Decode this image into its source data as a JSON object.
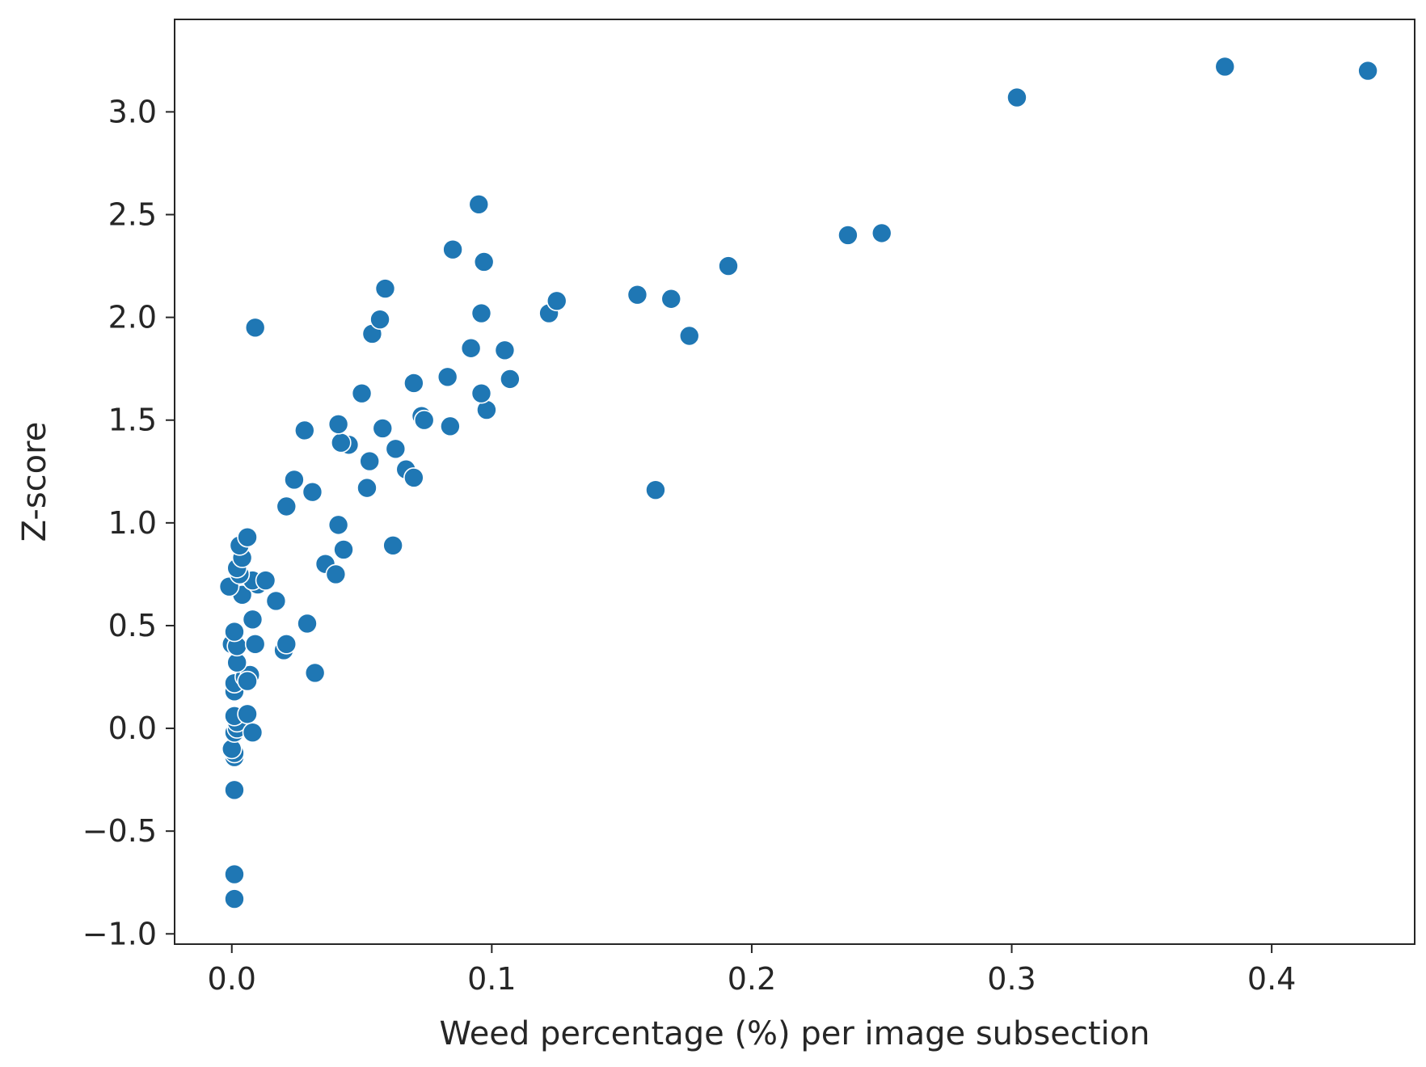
{
  "chart_data": {
    "type": "scatter",
    "title": "",
    "xlabel": "Weed percentage (%) per image subsection",
    "ylabel": "Z-score",
    "xlim": [
      -0.022,
      0.455
    ],
    "ylim": [
      -1.05,
      3.45
    ],
    "xticks": [
      0.0,
      0.1,
      0.2,
      0.3,
      0.4
    ],
    "xtick_labels": [
      "0.0",
      "0.1",
      "0.2",
      "0.3",
      "0.4"
    ],
    "yticks": [
      -1.0,
      -0.5,
      0.0,
      0.5,
      1.0,
      1.5,
      2.0,
      2.5,
      3.0
    ],
    "ytick_labels": [
      "−1.0",
      "−0.5",
      "0.0",
      "0.5",
      "1.0",
      "1.5",
      "2.0",
      "2.5",
      "3.0"
    ],
    "grid": false,
    "legend": "none",
    "marker_color": "#1f77b4",
    "marker_edge_color": "#ffffff",
    "points": [
      {
        "x": 0.001,
        "y": -0.83
      },
      {
        "x": 0.001,
        "y": -0.71
      },
      {
        "x": 0.001,
        "y": -0.3
      },
      {
        "x": 0.001,
        "y": -0.14
      },
      {
        "x": 0.001,
        "y": -0.12
      },
      {
        "x": 0.0,
        "y": -0.1
      },
      {
        "x": 0.001,
        "y": -0.02
      },
      {
        "x": 0.002,
        "y": 0.0
      },
      {
        "x": 0.002,
        "y": 0.03
      },
      {
        "x": 0.001,
        "y": 0.06
      },
      {
        "x": 0.006,
        "y": 0.07
      },
      {
        "x": 0.008,
        "y": -0.02
      },
      {
        "x": 0.001,
        "y": 0.18
      },
      {
        "x": 0.001,
        "y": 0.22
      },
      {
        "x": 0.005,
        "y": 0.25
      },
      {
        "x": 0.007,
        "y": 0.26
      },
      {
        "x": 0.006,
        "y": 0.23
      },
      {
        "x": 0.002,
        "y": 0.32
      },
      {
        "x": 0.0,
        "y": 0.41
      },
      {
        "x": 0.002,
        "y": 0.4
      },
      {
        "x": 0.001,
        "y": 0.47
      },
      {
        "x": 0.009,
        "y": 0.41
      },
      {
        "x": 0.008,
        "y": 0.53
      },
      {
        "x": 0.02,
        "y": 0.38
      },
      {
        "x": 0.021,
        "y": 0.41
      },
      {
        "x": 0.029,
        "y": 0.51
      },
      {
        "x": 0.032,
        "y": 0.27
      },
      {
        "x": 0.017,
        "y": 0.62
      },
      {
        "x": 0.004,
        "y": 0.65
      },
      {
        "x": -0.001,
        "y": 0.69
      },
      {
        "x": 0.01,
        "y": 0.7
      },
      {
        "x": 0.008,
        "y": 0.72
      },
      {
        "x": 0.013,
        "y": 0.72
      },
      {
        "x": 0.003,
        "y": 0.75
      },
      {
        "x": 0.002,
        "y": 0.78
      },
      {
        "x": 0.004,
        "y": 0.83
      },
      {
        "x": 0.003,
        "y": 0.89
      },
      {
        "x": 0.006,
        "y": 0.93
      },
      {
        "x": 0.036,
        "y": 0.8
      },
      {
        "x": 0.04,
        "y": 0.75
      },
      {
        "x": 0.043,
        "y": 0.87
      },
      {
        "x": 0.041,
        "y": 0.99
      },
      {
        "x": 0.062,
        "y": 0.89
      },
      {
        "x": 0.021,
        "y": 1.08
      },
      {
        "x": 0.031,
        "y": 1.15
      },
      {
        "x": 0.024,
        "y": 1.21
      },
      {
        "x": 0.052,
        "y": 1.17
      },
      {
        "x": 0.067,
        "y": 1.26
      },
      {
        "x": 0.07,
        "y": 1.22
      },
      {
        "x": 0.053,
        "y": 1.3
      },
      {
        "x": 0.063,
        "y": 1.36
      },
      {
        "x": 0.045,
        "y": 1.38
      },
      {
        "x": 0.042,
        "y": 1.39
      },
      {
        "x": 0.028,
        "y": 1.45
      },
      {
        "x": 0.041,
        "y": 1.48
      },
      {
        "x": 0.058,
        "y": 1.46
      },
      {
        "x": 0.073,
        "y": 1.52
      },
      {
        "x": 0.074,
        "y": 1.5
      },
      {
        "x": 0.084,
        "y": 1.47
      },
      {
        "x": 0.098,
        "y": 1.55
      },
      {
        "x": 0.096,
        "y": 1.63
      },
      {
        "x": 0.05,
        "y": 1.63
      },
      {
        "x": 0.07,
        "y": 1.68
      },
      {
        "x": 0.083,
        "y": 1.71
      },
      {
        "x": 0.107,
        "y": 1.7
      },
      {
        "x": 0.105,
        "y": 1.84
      },
      {
        "x": 0.092,
        "y": 1.85
      },
      {
        "x": 0.054,
        "y": 1.92
      },
      {
        "x": 0.057,
        "y": 1.99
      },
      {
        "x": 0.009,
        "y": 1.95
      },
      {
        "x": 0.059,
        "y": 2.14
      },
      {
        "x": 0.096,
        "y": 2.02
      },
      {
        "x": 0.085,
        "y": 2.33
      },
      {
        "x": 0.097,
        "y": 2.27
      },
      {
        "x": 0.095,
        "y": 2.55
      },
      {
        "x": 0.122,
        "y": 2.02
      },
      {
        "x": 0.125,
        "y": 2.08
      },
      {
        "x": 0.156,
        "y": 2.11
      },
      {
        "x": 0.169,
        "y": 2.09
      },
      {
        "x": 0.176,
        "y": 1.91
      },
      {
        "x": 0.163,
        "y": 1.16
      },
      {
        "x": 0.191,
        "y": 2.25
      },
      {
        "x": 0.237,
        "y": 2.4
      },
      {
        "x": 0.25,
        "y": 2.41
      },
      {
        "x": 0.302,
        "y": 3.07
      },
      {
        "x": 0.382,
        "y": 3.22
      },
      {
        "x": 0.437,
        "y": 3.2
      }
    ]
  }
}
